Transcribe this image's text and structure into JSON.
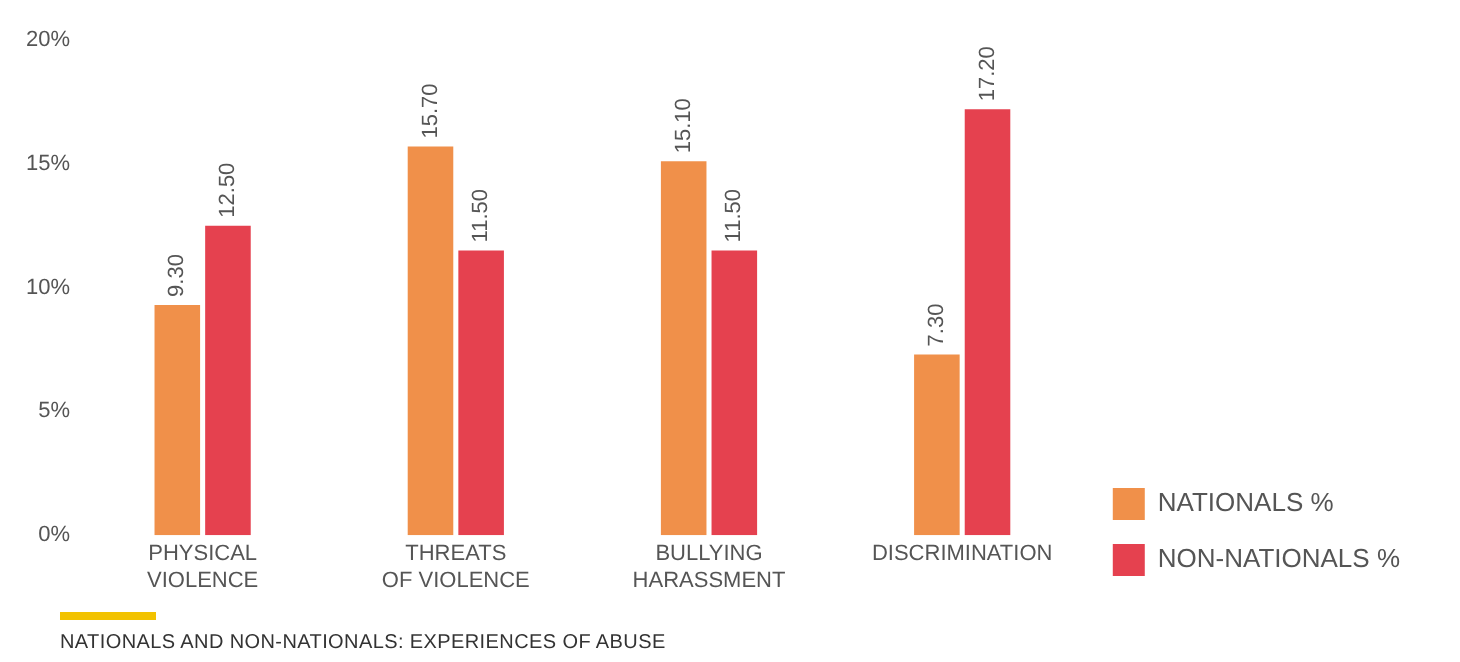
{
  "chart_data": {
    "type": "bar",
    "title": "NATIONALS AND NON-NATIONALS: EXPERIENCES OF ABUSE",
    "categories": [
      "PHYSICAL VIOLENCE",
      "THREATS OF VIOLENCE",
      "BULLYING HARASSMENT",
      "DISCRIMINATION"
    ],
    "series": [
      {
        "name": "NATIONALS %",
        "color": "#f0904a",
        "values": [
          9.3,
          15.7,
          15.1,
          7.3
        ],
        "value_labels": [
          "9.30",
          "15.70",
          "15.10",
          "7.30"
        ]
      },
      {
        "name": "NON-NATIONALS %",
        "color": "#e5414f",
        "values": [
          12.5,
          11.5,
          11.5,
          17.2
        ],
        "value_labels": [
          "12.50",
          "11.50",
          "11.50",
          "17.20"
        ]
      }
    ],
    "ylim": [
      0,
      20
    ],
    "yticks": [
      {
        "value": 0,
        "label": "0%"
      },
      {
        "value": 5,
        "label": "5%"
      },
      {
        "value": 10,
        "label": "10%"
      },
      {
        "value": 15,
        "label": "15%"
      },
      {
        "value": 20,
        "label": "20%"
      }
    ],
    "grid": false,
    "legend": "right"
  }
}
